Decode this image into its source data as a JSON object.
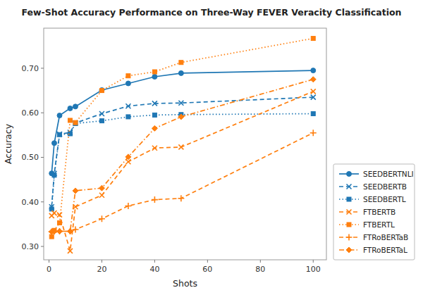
{
  "chart_data": {
    "type": "line",
    "title": "Few-Shot Accuracy Performance on Three-Way FEVER Veracity Classification",
    "x_label": "Shots",
    "y_label": "Accuracy",
    "x": [
      1,
      2,
      4,
      8,
      10,
      20,
      30,
      40,
      50,
      100
    ],
    "series": [
      {
        "name": "SEEDBERTNLI",
        "color": "#1f77b4",
        "line_style": "solid",
        "marker": "circle",
        "values": [
          0.464,
          0.532,
          0.594,
          0.61,
          0.614,
          0.651,
          0.666,
          0.681,
          0.689,
          0.695
        ]
      },
      {
        "name": "SEEDBERTB",
        "color": "#1f77b4",
        "line_style": "dashed",
        "marker": "x",
        "values": [
          0.389,
          0.464,
          0.552,
          0.556,
          0.577,
          0.598,
          0.615,
          0.621,
          0.622,
          0.635
        ]
      },
      {
        "name": "SEEDBERTL",
        "color": "#1f77b4",
        "line_style": "dotted",
        "marker": "square",
        "values": [
          0.384,
          0.46,
          0.551,
          0.553,
          0.576,
          0.582,
          0.591,
          0.595,
          0.596,
          0.598
        ]
      },
      {
        "name": "FTBERTB",
        "color": "#ff7f0e",
        "line_style": "dashed",
        "marker": "x",
        "values": [
          0.369,
          0.375,
          0.371,
          0.29,
          0.389,
          0.415,
          0.49,
          0.521,
          0.523,
          0.648
        ]
      },
      {
        "name": "FTBERTL",
        "color": "#ff7f0e",
        "line_style": "dotted",
        "marker": "square",
        "values": [
          0.322,
          0.336,
          0.353,
          0.583,
          0.578,
          0.65,
          0.683,
          0.692,
          0.713,
          0.767
        ]
      },
      {
        "name": "FTRoBERTaB",
        "color": "#ff7f0e",
        "line_style": "dashed",
        "marker": "plus",
        "values": [
          0.333,
          0.334,
          0.334,
          0.334,
          0.338,
          0.362,
          0.391,
          0.405,
          0.408,
          0.555
        ]
      },
      {
        "name": "FTRoBERTaL",
        "color": "#ff7f0e",
        "line_style": "dashdot",
        "marker": "diamond",
        "values": [
          0.333,
          0.334,
          0.334,
          0.334,
          0.425,
          0.431,
          0.501,
          0.565,
          0.591,
          0.675
        ]
      }
    ],
    "xlim": [
      -2,
      105
    ],
    "xticks": [
      0,
      20,
      40,
      60,
      80,
      100
    ],
    "ylim": [
      0.27,
      0.79
    ],
    "yticks": [
      {
        "value": 0.3,
        "label": "0.30"
      },
      {
        "value": 0.4,
        "label": "0.40"
      },
      {
        "value": 0.5,
        "label": "0.50"
      },
      {
        "value": 0.6,
        "label": "0.60"
      },
      {
        "value": 0.7,
        "label": "0.70"
      }
    ],
    "grid": false,
    "legend": "lower right"
  }
}
